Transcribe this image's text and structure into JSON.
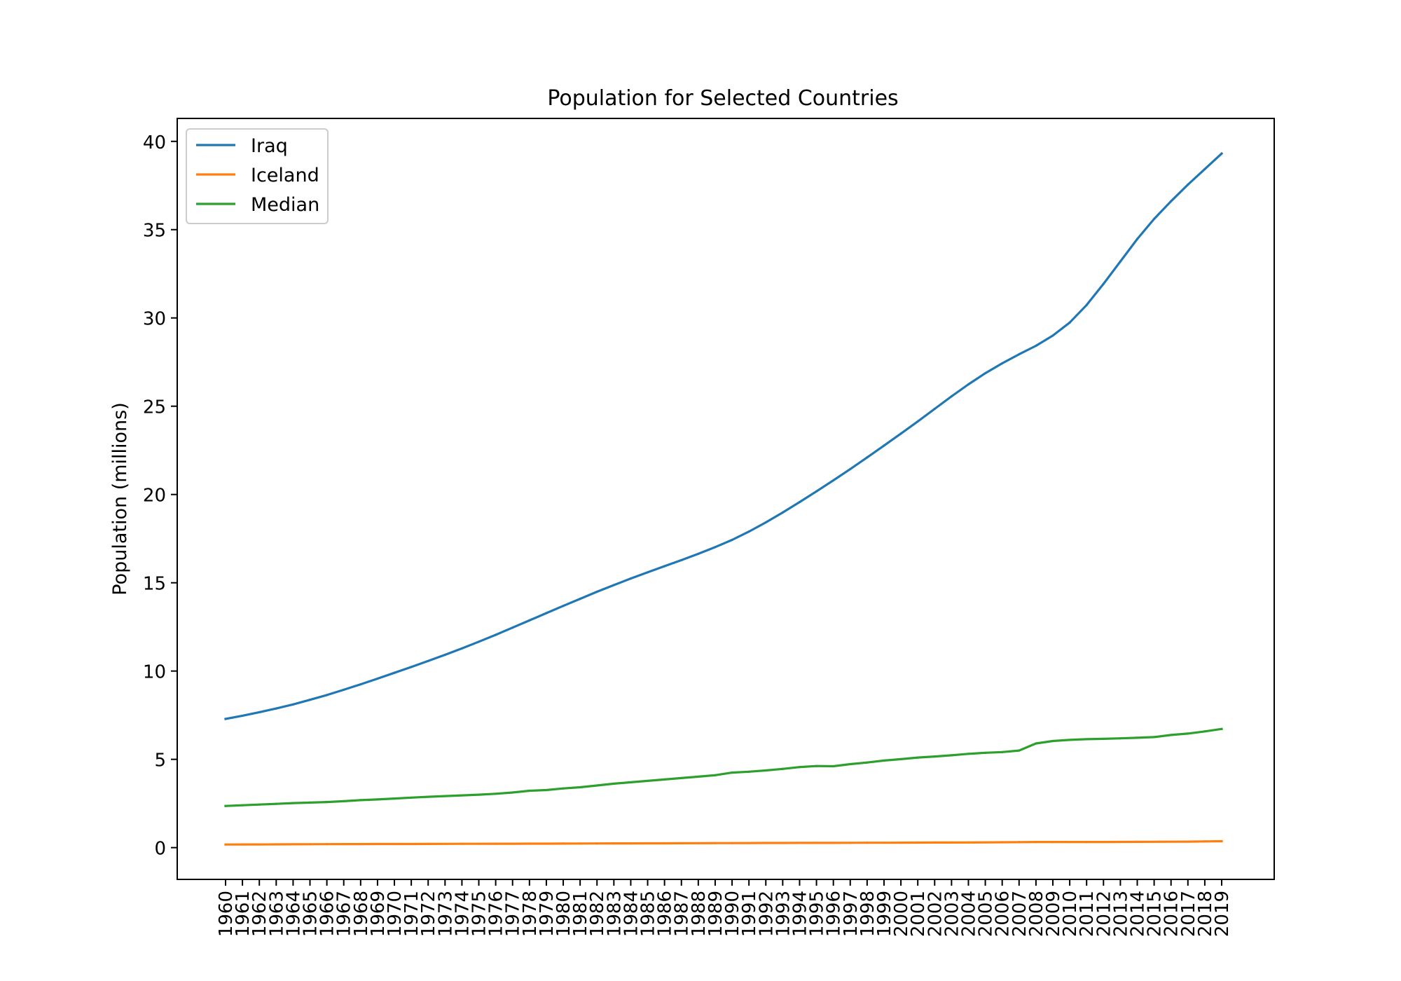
{
  "chart_data": {
    "type": "line",
    "title": "Population for Selected Countries",
    "xlabel": "",
    "ylabel": "Population (millions)",
    "x": [
      "1960",
      "1961",
      "1962",
      "1963",
      "1964",
      "1965",
      "1966",
      "1967",
      "1968",
      "1969",
      "1970",
      "1971",
      "1972",
      "1973",
      "1974",
      "1975",
      "1976",
      "1977",
      "1978",
      "1979",
      "1980",
      "1981",
      "1982",
      "1983",
      "1984",
      "1985",
      "1986",
      "1987",
      "1988",
      "1989",
      "1990",
      "1991",
      "1992",
      "1993",
      "1994",
      "1995",
      "1996",
      "1997",
      "1998",
      "1999",
      "2000",
      "2001",
      "2002",
      "2003",
      "2004",
      "2005",
      "2006",
      "2007",
      "2008",
      "2009",
      "2010",
      "2011",
      "2012",
      "2013",
      "2014",
      "2015",
      "2016",
      "2017",
      "2018",
      "2019"
    ],
    "ylim": [
      -1.8,
      41.3
    ],
    "yticks": [
      0,
      5,
      10,
      15,
      20,
      25,
      30,
      35,
      40
    ],
    "grid": false,
    "legend_position": "top-left",
    "series": [
      {
        "name": "Iraq",
        "color": "#1f77b4",
        "values": [
          7.29,
          7.47,
          7.67,
          7.88,
          8.11,
          8.37,
          8.64,
          8.94,
          9.25,
          9.57,
          9.9,
          10.23,
          10.57,
          10.92,
          11.28,
          11.66,
          12.05,
          12.46,
          12.87,
          13.28,
          13.69,
          14.09,
          14.49,
          14.87,
          15.24,
          15.59,
          15.94,
          16.28,
          16.64,
          17.02,
          17.43,
          17.9,
          18.42,
          18.98,
          19.57,
          20.18,
          20.8,
          21.44,
          22.1,
          22.77,
          23.45,
          24.14,
          24.85,
          25.56,
          26.24,
          26.87,
          27.43,
          27.94,
          28.42,
          29.0,
          29.74,
          30.73,
          31.93,
          33.2,
          34.47,
          35.61,
          36.61,
          37.55,
          38.43,
          39.31
        ]
      },
      {
        "name": "Iceland",
        "color": "#ff7f0e",
        "values": [
          0.176,
          0.179,
          0.182,
          0.185,
          0.188,
          0.192,
          0.196,
          0.199,
          0.201,
          0.203,
          0.204,
          0.206,
          0.209,
          0.212,
          0.215,
          0.218,
          0.22,
          0.222,
          0.224,
          0.226,
          0.228,
          0.231,
          0.234,
          0.238,
          0.24,
          0.242,
          0.244,
          0.247,
          0.251,
          0.254,
          0.255,
          0.259,
          0.262,
          0.265,
          0.267,
          0.268,
          0.269,
          0.271,
          0.274,
          0.277,
          0.281,
          0.285,
          0.288,
          0.289,
          0.293,
          0.296,
          0.304,
          0.312,
          0.318,
          0.319,
          0.318,
          0.319,
          0.321,
          0.323,
          0.327,
          0.331,
          0.335,
          0.341,
          0.353,
          0.361
        ]
      },
      {
        "name": "Median",
        "color": "#2ca02c",
        "values": [
          2.36,
          2.4,
          2.44,
          2.48,
          2.52,
          2.55,
          2.58,
          2.63,
          2.69,
          2.73,
          2.78,
          2.83,
          2.88,
          2.92,
          2.96,
          3.0,
          3.05,
          3.12,
          3.22,
          3.26,
          3.35,
          3.42,
          3.52,
          3.62,
          3.7,
          3.78,
          3.86,
          3.94,
          4.02,
          4.1,
          4.25,
          4.3,
          4.37,
          4.46,
          4.56,
          4.62,
          4.61,
          4.73,
          4.82,
          4.93,
          5.01,
          5.1,
          5.16,
          5.23,
          5.31,
          5.37,
          5.41,
          5.5,
          5.9,
          6.04,
          6.1,
          6.14,
          6.16,
          6.19,
          6.22,
          6.26,
          6.38,
          6.46,
          6.58,
          6.72
        ]
      }
    ]
  }
}
